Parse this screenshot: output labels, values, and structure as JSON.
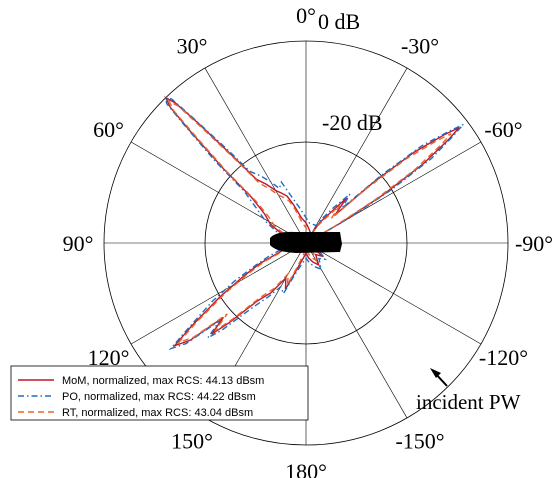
{
  "chart_data": {
    "type": "polar",
    "radial_axis": {
      "labels": [
        "0 dB",
        "-20 dB"
      ],
      "min_db": -40,
      "max_db": 0,
      "ring_db": [
        -20,
        0
      ]
    },
    "angle_labels": [
      {
        "deg": 0,
        "label": "0°"
      },
      {
        "deg": 30,
        "label": "30°"
      },
      {
        "deg": 60,
        "label": "60°"
      },
      {
        "deg": 90,
        "label": "90°"
      },
      {
        "deg": 120,
        "label": "120°"
      },
      {
        "deg": 150,
        "label": "150°"
      },
      {
        "deg": 180,
        "label": "180°"
      },
      {
        "deg": -150,
        "label": "-150°"
      },
      {
        "deg": -120,
        "label": "-120°"
      },
      {
        "deg": -90,
        "label": "-90°"
      },
      {
        "deg": -60,
        "label": "-60°"
      },
      {
        "deg": -30,
        "label": "-30°"
      }
    ],
    "series": [
      {
        "name": "MoM, normalized, max RCS: 44.13 dBsm",
        "color": "#c0182a",
        "dash": "solid",
        "points": [
          [
            -62,
            -42
          ],
          [
            -60,
            -32
          ],
          [
            -58,
            -22
          ],
          [
            -56,
            -12
          ],
          [
            -54,
            -5
          ],
          [
            -53,
            -2
          ],
          [
            -52,
            -5
          ],
          [
            -50,
            -12
          ],
          [
            -48,
            -22
          ],
          [
            -46,
            -32
          ],
          [
            -42,
            -28
          ],
          [
            -38,
            -33
          ],
          [
            -34,
            -35
          ],
          [
            -30,
            -38
          ],
          [
            -10,
            -37
          ],
          [
            0,
            -36
          ],
          [
            10,
            -35
          ],
          [
            18,
            -32
          ],
          [
            22,
            -30
          ],
          [
            26,
            -29
          ],
          [
            30,
            -28
          ],
          [
            34,
            -26
          ],
          [
            38,
            -24
          ],
          [
            40,
            -18
          ],
          [
            42,
            -8
          ],
          [
            43,
            -2
          ],
          [
            44,
            0
          ],
          [
            45,
            -2
          ],
          [
            46,
            -8
          ],
          [
            48,
            -18
          ],
          [
            50,
            -26
          ],
          [
            55,
            -30
          ],
          [
            62,
            -32
          ],
          [
            70,
            -35
          ],
          [
            80,
            -37
          ],
          [
            90,
            -38
          ],
          [
            100,
            -37
          ],
          [
            110,
            -34
          ],
          [
            114,
            -30
          ],
          [
            118,
            -26
          ],
          [
            122,
            -20
          ],
          [
            126,
            -12
          ],
          [
            128,
            -7
          ],
          [
            130,
            -10
          ],
          [
            132,
            -18
          ],
          [
            134,
            -14
          ],
          [
            136,
            -18
          ],
          [
            140,
            -25
          ],
          [
            145,
            -28
          ],
          [
            150,
            -32
          ],
          [
            156,
            -30
          ],
          [
            160,
            -34
          ],
          [
            170,
            -37
          ],
          [
            180,
            -38
          ],
          [
            -170,
            -37
          ],
          [
            -160,
            -36
          ],
          [
            -150,
            -35
          ],
          [
            -140,
            -37
          ],
          [
            -130,
            -36
          ],
          [
            -120,
            -38
          ],
          [
            -110,
            -39
          ],
          [
            -100,
            -40
          ],
          [
            -90,
            -40
          ],
          [
            -80,
            -40
          ],
          [
            -70,
            -40
          ],
          [
            -62,
            -42
          ]
        ]
      },
      {
        "name": "PO, normalized, max RCS: 44.22 dBsm",
        "color": "#1f6fbf",
        "dash": "dashdot",
        "points": [
          [
            -62,
            -40
          ],
          [
            -60,
            -30
          ],
          [
            -58,
            -20
          ],
          [
            -56,
            -10
          ],
          [
            -54,
            -4
          ],
          [
            -53,
            -1
          ],
          [
            -52,
            -4
          ],
          [
            -50,
            -10
          ],
          [
            -48,
            -20
          ],
          [
            -46,
            -30
          ],
          [
            -42,
            -27
          ],
          [
            -38,
            -31
          ],
          [
            -34,
            -34
          ],
          [
            -30,
            -36
          ],
          [
            -10,
            -36
          ],
          [
            0,
            -35
          ],
          [
            10,
            -33
          ],
          [
            18,
            -30
          ],
          [
            22,
            -27
          ],
          [
            26,
            -28
          ],
          [
            30,
            -26
          ],
          [
            34,
            -24
          ],
          [
            38,
            -22
          ],
          [
            40,
            -16
          ],
          [
            42,
            -7
          ],
          [
            43,
            -1
          ],
          [
            44,
            0
          ],
          [
            45,
            -1
          ],
          [
            46,
            -7
          ],
          [
            48,
            -16
          ],
          [
            50,
            -24
          ],
          [
            55,
            -28
          ],
          [
            62,
            -31
          ],
          [
            70,
            -34
          ],
          [
            80,
            -36
          ],
          [
            90,
            -37
          ],
          [
            100,
            -36
          ],
          [
            110,
            -32
          ],
          [
            114,
            -29
          ],
          [
            118,
            -24
          ],
          [
            122,
            -18
          ],
          [
            126,
            -11
          ],
          [
            128,
            -6
          ],
          [
            130,
            -9
          ],
          [
            132,
            -17
          ],
          [
            134,
            -13
          ],
          [
            136,
            -16
          ],
          [
            140,
            -23
          ],
          [
            145,
            -27
          ],
          [
            150,
            -30
          ],
          [
            156,
            -29
          ],
          [
            160,
            -33
          ],
          [
            170,
            -36
          ],
          [
            180,
            -37
          ],
          [
            -170,
            -36
          ],
          [
            -160,
            -35
          ],
          [
            -150,
            -34
          ],
          [
            -140,
            -36
          ],
          [
            -130,
            -35
          ],
          [
            -120,
            -37
          ],
          [
            -110,
            -38
          ],
          [
            -100,
            -39
          ],
          [
            -90,
            -40
          ],
          [
            -80,
            -40
          ],
          [
            -70,
            -39
          ],
          [
            -62,
            -40
          ]
        ]
      },
      {
        "name": "RT, normalized, max RCS: 43.04 dBsm",
        "color": "#e8662b",
        "dash": "dashed",
        "points": [
          [
            -62,
            -43
          ],
          [
            -60,
            -34
          ],
          [
            -58,
            -24
          ],
          [
            -56,
            -14
          ],
          [
            -54,
            -7
          ],
          [
            -53,
            -4
          ],
          [
            -52,
            -7
          ],
          [
            -50,
            -14
          ],
          [
            -48,
            -24
          ],
          [
            -46,
            -33
          ],
          [
            -42,
            -30
          ],
          [
            -38,
            -34
          ],
          [
            -34,
            -36
          ],
          [
            -30,
            -39
          ],
          [
            -10,
            -38
          ],
          [
            0,
            -37
          ],
          [
            10,
            -36
          ],
          [
            18,
            -33
          ],
          [
            22,
            -31
          ],
          [
            26,
            -30
          ],
          [
            30,
            -29
          ],
          [
            34,
            -27
          ],
          [
            38,
            -25
          ],
          [
            40,
            -19
          ],
          [
            42,
            -10
          ],
          [
            43,
            -3
          ],
          [
            44,
            -1
          ],
          [
            45,
            -3
          ],
          [
            46,
            -10
          ],
          [
            48,
            -19
          ],
          [
            50,
            -27
          ],
          [
            55,
            -31
          ],
          [
            62,
            -33
          ],
          [
            70,
            -36
          ],
          [
            80,
            -38
          ],
          [
            90,
            -39
          ],
          [
            100,
            -38
          ],
          [
            110,
            -35
          ],
          [
            114,
            -31
          ],
          [
            118,
            -27
          ],
          [
            122,
            -21
          ],
          [
            126,
            -13
          ],
          [
            128,
            -8
          ],
          [
            130,
            -11
          ],
          [
            132,
            -19
          ],
          [
            134,
            -15
          ],
          [
            136,
            -19
          ],
          [
            140,
            -26
          ],
          [
            145,
            -29
          ],
          [
            150,
            -33
          ],
          [
            156,
            -31
          ],
          [
            160,
            -35
          ],
          [
            170,
            -38
          ],
          [
            180,
            -39
          ],
          [
            -170,
            -38
          ],
          [
            -160,
            -37
          ],
          [
            -150,
            -36
          ],
          [
            -140,
            -38
          ],
          [
            -130,
            -37
          ],
          [
            -120,
            -39
          ],
          [
            -110,
            -40
          ],
          [
            -100,
            -40
          ],
          [
            -90,
            -40
          ],
          [
            -80,
            -40
          ],
          [
            -70,
            -40
          ],
          [
            -62,
            -43
          ]
        ]
      }
    ],
    "legend_position": "bottom-left",
    "annotation": "incident PW",
    "grid": true
  }
}
